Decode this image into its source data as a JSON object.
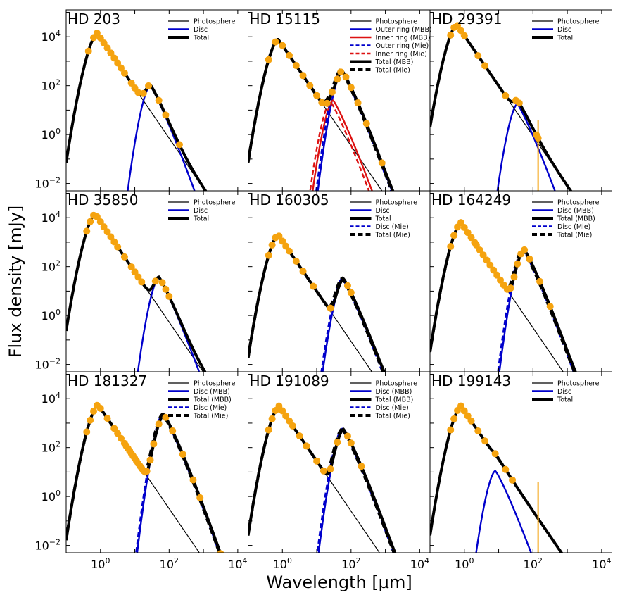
{
  "figure": {
    "ylabel": "Flux density [mJy]",
    "xlabel": "Wavelength [µm]",
    "xscale": "log",
    "yscale": "log",
    "xlim_log10": [
      -1,
      4.3
    ],
    "ylim_log10": [
      -2.3,
      5.1
    ],
    "x_ticks": [
      {
        "exp": 0,
        "label": "10",
        "sup": "0"
      },
      {
        "exp": 2,
        "label": "10",
        "sup": "2"
      },
      {
        "exp": 4,
        "label": "10",
        "sup": "4"
      }
    ],
    "y_ticks": [
      {
        "exp": -2,
        "label": "10",
        "sup": "−2"
      },
      {
        "exp": 0,
        "label": "10",
        "sup": "0"
      },
      {
        "exp": 2,
        "label": "10",
        "sup": "2"
      },
      {
        "exp": 4,
        "label": "10",
        "sup": "4"
      }
    ],
    "colors": {
      "photosphere": "#000000",
      "disc": "#0000cc",
      "ring": "#dd1111",
      "total": "#000000",
      "points": "#f5a30f"
    }
  },
  "chart_data": [
    {
      "type": "line",
      "title": "HD 203",
      "star_peak_um": 0.8,
      "star_peak_log_flux": 4.15,
      "legend": [
        "Photosphere",
        "Disc",
        "Total"
      ],
      "series": [
        {
          "name": "Disc",
          "kind": "disc",
          "peak_um": 28,
          "peak_log_flux": 2.0
        }
      ],
      "points_log_x": [
        -0.35,
        -0.2,
        -0.1,
        0.0,
        0.1,
        0.2,
        0.3,
        0.4,
        0.5,
        0.6,
        0.7,
        0.9,
        1.0,
        1.1,
        1.25,
        1.4,
        1.7,
        1.9,
        2.3
      ],
      "markers": []
    },
    {
      "type": "line",
      "title": "HD 15115",
      "star_peak_um": 0.75,
      "star_peak_log_flux": 3.9,
      "legend": [
        "Photosphere",
        "Outer ring (MBB)",
        "Inner ring (MBB)",
        "Outer ring (Mie)",
        "Inner ring (Mie)",
        "Total (MBB)",
        "Total (Mie)"
      ],
      "series": [
        {
          "name": "Outer ring (MBB)",
          "kind": "disc",
          "peak_um": 55,
          "peak_log_flux": 2.6
        },
        {
          "name": "Inner ring (MBB)",
          "kind": "ring",
          "peak_um": 30,
          "peak_log_flux": 1.4
        },
        {
          "name": "Outer ring (Mie)",
          "kind": "disc_mie",
          "peak_um": 50,
          "peak_log_flux": 2.65
        },
        {
          "name": "Inner ring (Mie)",
          "kind": "ring_mie",
          "peak_um": 25,
          "peak_log_flux": 1.35
        }
      ],
      "points_log_x": [
        -0.4,
        -0.2,
        0.0,
        0.2,
        0.4,
        0.6,
        0.8,
        1.0,
        1.15,
        1.3,
        1.45,
        1.6,
        1.7,
        1.85,
        2.0,
        2.2,
        2.45,
        2.9,
        3.9
      ],
      "markers": []
    },
    {
      "type": "line",
      "title": "HD 29391",
      "star_peak_um": 0.6,
      "star_peak_log_flux": 4.5,
      "legend": [
        "Photosphere",
        "Disc",
        "Total"
      ],
      "series": [
        {
          "name": "Disc",
          "kind": "disc",
          "peak_um": 35,
          "peak_log_flux": 1.25
        }
      ],
      "points_log_x": [
        -0.4,
        -0.3,
        -0.2,
        -0.1,
        0.0,
        0.4,
        0.6,
        1.2,
        1.5,
        1.6,
        2.1,
        2.15
      ],
      "markers": [
        {
          "log_x": 2.15,
          "top_log_y": 0.6
        }
      ]
    },
    {
      "type": "line",
      "title": "HD 35850",
      "star_peak_um": 0.7,
      "star_peak_log_flux": 4.15,
      "legend": [
        "Photosphere",
        "Disc",
        "Total"
      ],
      "series": [
        {
          "name": "Disc",
          "kind": "disc",
          "peak_um": 50,
          "peak_log_flux": 1.55
        }
      ],
      "points_log_x": [
        -0.4,
        -0.3,
        -0.2,
        -0.1,
        0.0,
        0.1,
        0.2,
        0.3,
        0.4,
        0.5,
        0.7,
        0.9,
        1.0,
        1.1,
        1.2,
        1.6,
        1.8,
        1.9,
        2.0
      ],
      "markers": []
    },
    {
      "type": "line",
      "title": "HD 160305",
      "star_peak_um": 0.75,
      "star_peak_log_flux": 3.3,
      "legend": [
        "Photosphere",
        "Disc",
        "Total",
        "Disc (Mie)",
        "Total (Mie)"
      ],
      "series": [
        {
          "name": "Disc",
          "kind": "disc",
          "peak_um": 60,
          "peak_log_flux": 1.5
        },
        {
          "name": "Disc (Mie)",
          "kind": "disc_mie",
          "peak_um": 55,
          "peak_log_flux": 1.52
        }
      ],
      "points_log_x": [
        -0.4,
        -0.3,
        -0.2,
        -0.1,
        0.0,
        0.1,
        0.2,
        0.4,
        0.6,
        0.9,
        1.4,
        1.9,
        2.0
      ],
      "markers": []
    },
    {
      "type": "line",
      "title": "HD 164249",
      "star_peak_um": 0.8,
      "star_peak_log_flux": 3.8,
      "legend": [
        "Photosphere",
        "Disc (MBB)",
        "Total (MBB)",
        "Disc (Mie)",
        "Total (Mie)"
      ],
      "series": [
        {
          "name": "Disc (MBB)",
          "kind": "disc",
          "peak_um": 55,
          "peak_log_flux": 2.7
        },
        {
          "name": "Disc (Mie)",
          "kind": "disc_mie",
          "peak_um": 50,
          "peak_log_flux": 2.72
        }
      ],
      "points_log_x": [
        -0.4,
        -0.3,
        -0.2,
        -0.1,
        0.0,
        0.1,
        0.2,
        0.3,
        0.35,
        0.45,
        0.55,
        0.65,
        0.75,
        0.85,
        0.95,
        1.05,
        1.15,
        1.25,
        1.35,
        1.45,
        1.55,
        1.65,
        1.75,
        1.9,
        2.2,
        2.5,
        3.3
      ],
      "markers": []
    },
    {
      "type": "line",
      "title": "HD 181327",
      "star_peak_um": 0.85,
      "star_peak_log_flux": 3.75,
      "legend": [
        "Photosphere",
        "Disc (MBB)",
        "Total (MBB)",
        "Disc (Mie)",
        "Total (Mie)"
      ],
      "series": [
        {
          "name": "Disc (MBB)",
          "kind": "disc",
          "peak_um": 70,
          "peak_log_flux": 3.35
        },
        {
          "name": "Disc (Mie)",
          "kind": "disc_mie",
          "peak_um": 65,
          "peak_log_flux": 3.37
        }
      ],
      "points_log_x": [
        -0.4,
        -0.3,
        -0.2,
        -0.1,
        0.0,
        0.2,
        0.4,
        0.5,
        0.6,
        0.7,
        0.75,
        0.8,
        0.85,
        0.9,
        0.95,
        1.0,
        1.05,
        1.1,
        1.15,
        1.2,
        1.25,
        1.3,
        1.35,
        1.45,
        1.55,
        1.7,
        1.9,
        2.1,
        2.4,
        2.7,
        2.9,
        3.5
      ],
      "markers": []
    },
    {
      "type": "line",
      "title": "HD 191089",
      "star_peak_um": 0.8,
      "star_peak_log_flux": 3.7,
      "legend": [
        "Photosphere",
        "Disc (MBB)",
        "Total (MBB)",
        "Disc (Mie)",
        "Total (Mie)"
      ],
      "series": [
        {
          "name": "Disc (MBB)",
          "kind": "disc",
          "peak_um": 60,
          "peak_log_flux": 2.75
        },
        {
          "name": "Disc (Mie)",
          "kind": "disc_mie",
          "peak_um": 55,
          "peak_log_flux": 2.77
        }
      ],
      "points_log_x": [
        -0.4,
        -0.3,
        -0.2,
        -0.1,
        0.0,
        0.1,
        0.2,
        0.3,
        0.5,
        0.7,
        1.0,
        1.2,
        1.4,
        1.6,
        1.9,
        2.0,
        2.3
      ],
      "markers": []
    },
    {
      "type": "line",
      "title": "HD 199143",
      "star_peak_um": 0.8,
      "star_peak_log_flux": 3.7,
      "legend": [
        "Photosphere",
        "Disc",
        "Total"
      ],
      "series": [
        {
          "name": "Disc",
          "kind": "disc",
          "peak_um": 8,
          "peak_log_flux": 1.05
        }
      ],
      "points_log_x": [
        -0.4,
        -0.3,
        -0.2,
        -0.1,
        0.0,
        0.1,
        0.2,
        0.4,
        0.6,
        0.9,
        1.2,
        1.4
      ],
      "markers": [
        {
          "log_x": 2.15,
          "top_log_y": 0.6
        }
      ]
    }
  ]
}
